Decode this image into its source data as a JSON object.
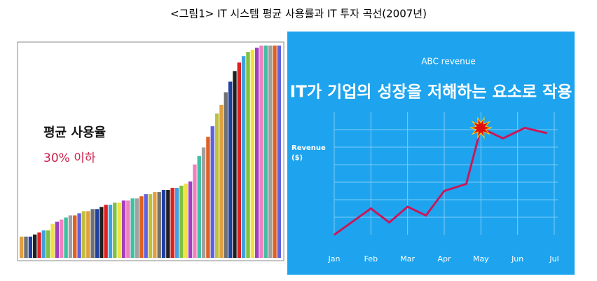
{
  "caption": "<그림1> IT 시스템 평균 사용률과 IT 투자 곡선(2007년)",
  "chart_data": [
    {
      "type": "bar",
      "annotations": [
        "평균 사용율",
        "30% 이하"
      ],
      "values": [
        10,
        10,
        10,
        11,
        12,
        13,
        13,
        16,
        17,
        18,
        19,
        20,
        20,
        21,
        22,
        22,
        23,
        23,
        24,
        25,
        25,
        26,
        26,
        27,
        27,
        28,
        28,
        29,
        30,
        30,
        31,
        31,
        32,
        32,
        33,
        33,
        34,
        35,
        36,
        44,
        48,
        52,
        57,
        62,
        68,
        72,
        78,
        83,
        88,
        92,
        95,
        97,
        98,
        99,
        100,
        100,
        100,
        100,
        100
      ],
      "colors": [
        "#e0a040",
        "#707070",
        "#2040a0",
        "#202020",
        "#e02020",
        "#40a0e0",
        "#80c040",
        "#f0e040",
        "#a040c0",
        "#f080c0",
        "#40c0a0",
        "#a0a0a0",
        "#e06020",
        "#6060e0",
        "#c0c040",
        "#e0a040",
        "#707070",
        "#2040a0",
        "#202020",
        "#e02020",
        "#40a0e0",
        "#80c040",
        "#f0e040",
        "#a040c0",
        "#f080c0",
        "#40c0a0",
        "#a0a0a0",
        "#e06020",
        "#6060e0",
        "#c0c040",
        "#e0a040",
        "#707070",
        "#2040a0",
        "#202020",
        "#e02020",
        "#40a0e0",
        "#80c040",
        "#f0e040",
        "#a040c0",
        "#f080c0",
        "#40c0a0",
        "#a0a0a0",
        "#e06020",
        "#6060e0",
        "#c0c040",
        "#e0a040",
        "#707070",
        "#2040a0",
        "#202020",
        "#e02020",
        "#40a0e0",
        "#80c040",
        "#f0e040",
        "#a040c0",
        "#f080c0",
        "#40c0a0",
        "#a0a0a0",
        "#e06020",
        "#6060e0"
      ],
      "ylim": [
        0,
        100
      ]
    },
    {
      "type": "line",
      "title": "ABC revenue",
      "annotation": "IT가 기업의 성장을 저해하는 요소로 작용",
      "ylabel": "Revenue ($)",
      "x": [
        0,
        1,
        1.5,
        2,
        2.5,
        3,
        3.6,
        4,
        4.6,
        5.2,
        5.8
      ],
      "values": [
        0,
        1.5,
        0.7,
        1.6,
        1.1,
        2.5,
        2.9,
        6.1,
        5.5,
        6.1,
        5.8
      ],
      "color": "#c8185a",
      "xlim": [
        0,
        6
      ],
      "xticks": [
        {
          "value": 0,
          "label": "Jan"
        },
        {
          "value": 1,
          "label": "Feb"
        },
        {
          "value": 2,
          "label": "Mar"
        },
        {
          "value": 3,
          "label": "Apr"
        },
        {
          "value": 4,
          "label": "May"
        },
        {
          "value": 5,
          "label": "Jun"
        },
        {
          "value": 6,
          "label": "Jul"
        }
      ],
      "ylim": [
        0,
        7
      ],
      "ygrid": [
        1,
        2,
        3,
        4,
        5,
        6
      ],
      "background": "#1ea4ee"
    }
  ]
}
